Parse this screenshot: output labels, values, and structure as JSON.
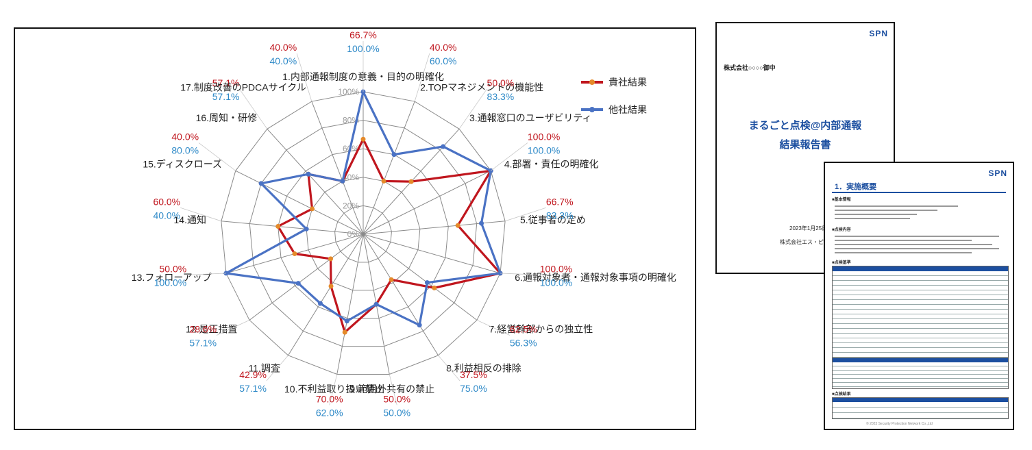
{
  "chart_data": {
    "type": "radar",
    "categories": [
      "1.内部通報制度の意義・目的の明確化",
      "2.TOPマネジメントの機能性",
      "3.通報窓口のユーザビリティ",
      "4.部署・責任の明確化",
      "5.従事者の定め",
      "6.通報対象者・通報対象事項の明確化",
      "7.経営幹部からの独立性",
      "8.利益相反の排除",
      "9.範囲外共有の禁止",
      "10.不利益取り扱い禁止",
      "11.調査",
      "12.是正措置",
      "13.フォローアップ",
      "14.通知",
      "15.ディスクローズ",
      "16.周知・研修",
      "17.制度改善のPDCAサイクル"
    ],
    "series": [
      {
        "name": "貴社結果",
        "color": "#c0161e",
        "values": [
          66.7,
          40.0,
          50.0,
          100.0,
          66.7,
          100.0,
          62.5,
          37.5,
          50.0,
          70.0,
          42.9,
          28.6,
          50.0,
          60.0,
          40.0,
          57.1,
          40.0
        ],
        "labels": [
          "66.7%",
          "40.0%",
          "50.0%",
          "100.0%",
          "66.7%",
          "100.0%",
          "62.5%",
          "37.5%",
          "50.0%",
          "70.0%",
          "42.9%",
          "28.6%",
          "50.0%",
          "60.0%",
          "40.0%",
          "57.1%",
          "40.0%"
        ]
      },
      {
        "name": "他社結果",
        "color": "#4a72c4",
        "values": [
          100.0,
          60.0,
          83.3,
          100.0,
          83.3,
          100.0,
          56.3,
          75.0,
          50.0,
          62.0,
          57.1,
          57.1,
          100.0,
          40.0,
          80.0,
          57.1,
          40.0
        ],
        "labels": [
          "100.0%",
          "60.0%",
          "83.3%",
          "100.0%",
          "83.3%",
          "100.0%",
          "56.3%",
          "75.0%",
          "50.0%",
          "62.0%",
          "57.1%",
          "57.1%",
          "100.0%",
          "40.0%",
          "80.0%",
          "57.1%",
          "40.0%"
        ]
      }
    ],
    "rticks": [
      "0%",
      "20%",
      "40%",
      "60%",
      "80%",
      "100%"
    ],
    "rlim": [
      0,
      100
    ],
    "grid": true,
    "legend": "top-right"
  },
  "doc_cover": {
    "logo": "SPN",
    "addressee": "株式会社○○○○御中",
    "title_line1": "まるごと点検@内部通報",
    "title_line2": "結果報告書",
    "date": "2023年1月25日",
    "company": "株式会社エス・ピー・ネ"
  },
  "doc_summary": {
    "logo": "SPN",
    "heading": "1．実施概要",
    "sec_basic": "■基本情報",
    "sec_content": "■点検内容",
    "sec_criteria": "■点検基準",
    "sec_result": "■点検結果",
    "footer": "© 2023 Security Protection Network Co.,Ltd"
  },
  "colors": {
    "accent": "#1c4fa0",
    "red": "#c0161e",
    "blue": "#4a72c4",
    "blue_label": "#2f8ac8"
  }
}
